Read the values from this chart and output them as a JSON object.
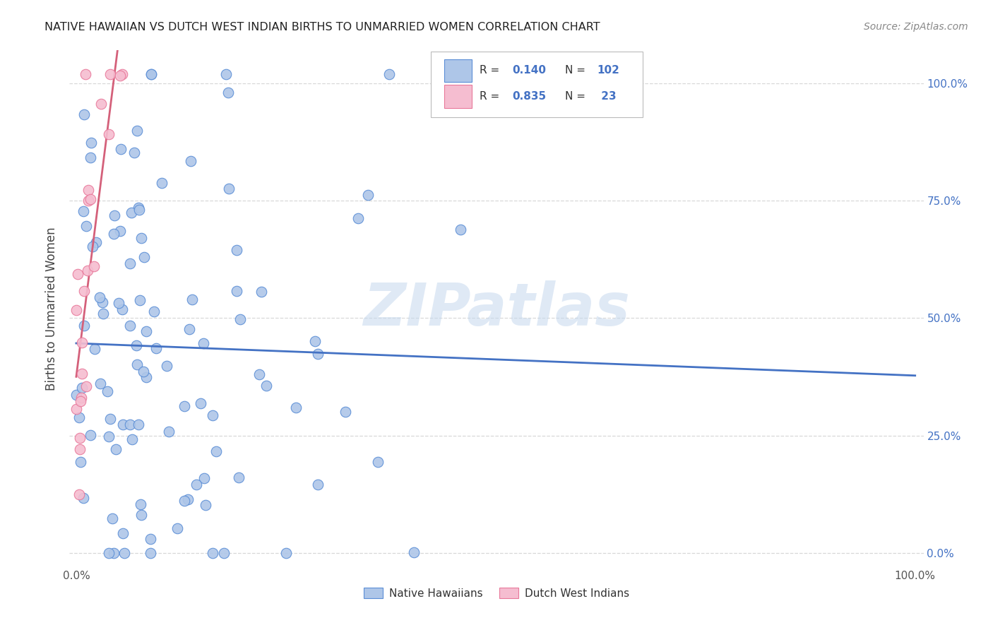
{
  "title": "NATIVE HAWAIIAN VS DUTCH WEST INDIAN BIRTHS TO UNMARRIED WOMEN CORRELATION CHART",
  "source": "Source: ZipAtlas.com",
  "ylabel": "Births to Unmarried Women",
  "watermark": "ZIPatlas",
  "blue_color": "#aec6e8",
  "pink_color": "#f5bdd0",
  "blue_edge_color": "#5b8ed6",
  "pink_edge_color": "#e8789a",
  "blue_line_color": "#4472c4",
  "pink_line_color": "#d4607a",
  "title_color": "#222222",
  "source_color": "#888888",
  "grid_color": "#d8d8d8",
  "watermark_color": "#c5d8ee",
  "background_color": "#ffffff",
  "right_tick_color": "#4472c4",
  "legend_r_blue": "0.140",
  "legend_n_blue": "102",
  "legend_r_pink": "0.835",
  "legend_n_pink": " 23"
}
